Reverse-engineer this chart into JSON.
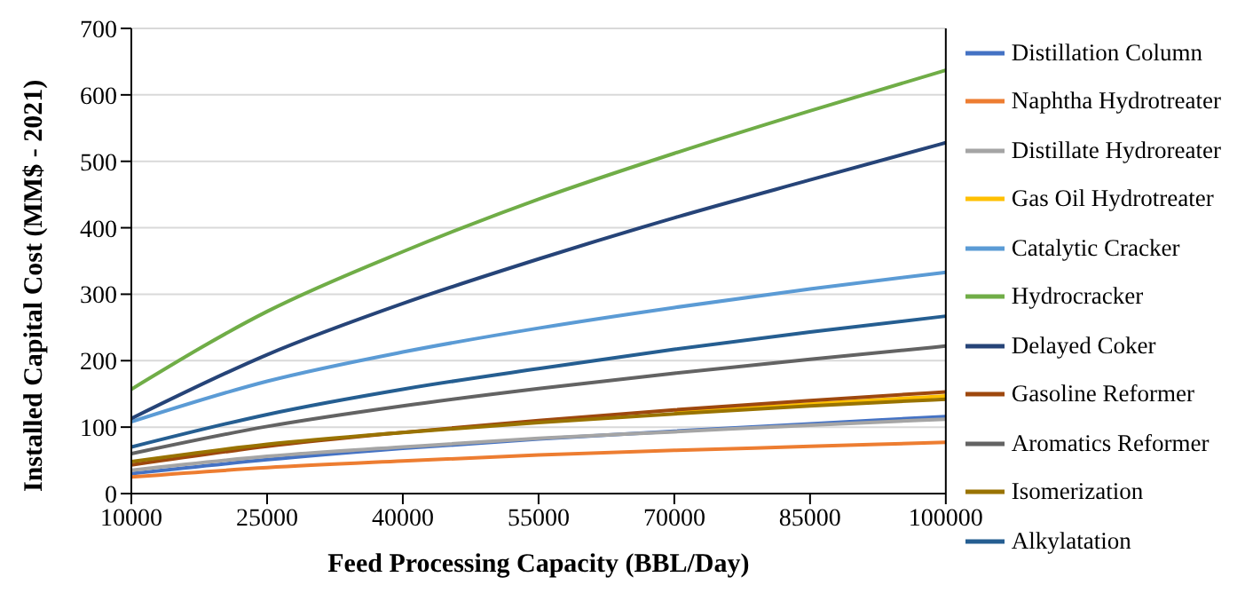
{
  "chart_data": {
    "type": "line",
    "xlabel": "Feed Processing Capacity (BBL/Day)",
    "ylabel": "Installed Capital Cost (MM$ - 2021)",
    "x": [
      10000,
      25000,
      40000,
      55000,
      70000,
      85000,
      100000
    ],
    "xlim": [
      10000,
      100000
    ],
    "xticks": [
      10000,
      25000,
      40000,
      55000,
      70000,
      85000,
      100000
    ],
    "ylim": [
      0,
      700
    ],
    "yticks": [
      0,
      100,
      200,
      300,
      400,
      500,
      600,
      700
    ],
    "grid": "y",
    "legend": "right",
    "marker": "none",
    "line_style": "solid",
    "series": [
      {
        "name": "Distillation Column",
        "color": "#4472c4",
        "values": [
          30,
          51,
          68,
          82,
          94,
          105,
          116
        ]
      },
      {
        "name": "Naphtha Hydrotreater",
        "color": "#ed7d31",
        "values": [
          25,
          39,
          49,
          58,
          65,
          71,
          77
        ]
      },
      {
        "name": "Distillate Hydroreater",
        "color": "#a5a5a5",
        "values": [
          35,
          56,
          70,
          83,
          93,
          103,
          112
        ]
      },
      {
        "name": "Gas Oil Hydrotreater",
        "color": "#ffc000",
        "values": [
          null,
          null,
          null,
          null,
          122,
          135,
          147
        ]
      },
      {
        "name": "Catalytic Cracker",
        "color": "#5b9bd5",
        "values": [
          108,
          169,
          213,
          249,
          280,
          308,
          333
        ]
      },
      {
        "name": "Hydrocracker",
        "color": "#70ad47",
        "values": [
          157,
          274,
          364,
          443,
          512,
          576,
          637
        ]
      },
      {
        "name": "Delayed Coker",
        "color": "#264478",
        "values": [
          113,
          209,
          286,
          353,
          415,
          472,
          528
        ]
      },
      {
        "name": "Gasoline Reformer",
        "color": "#9e480e",
        "values": [
          43,
          71,
          92,
          110,
          126,
          140,
          153
        ]
      },
      {
        "name": "Aromatics Reformer",
        "color": "#636363",
        "values": [
          60,
          101,
          132,
          158,
          181,
          202,
          222
        ]
      },
      {
        "name": "Isomerization",
        "color": "#997300",
        "values": [
          48,
          74,
          92,
          107,
          120,
          132,
          142
        ]
      },
      {
        "name": "Alkylatation",
        "color": "#255e91",
        "values": [
          70,
          119,
          157,
          188,
          217,
          243,
          267
        ]
      }
    ]
  }
}
